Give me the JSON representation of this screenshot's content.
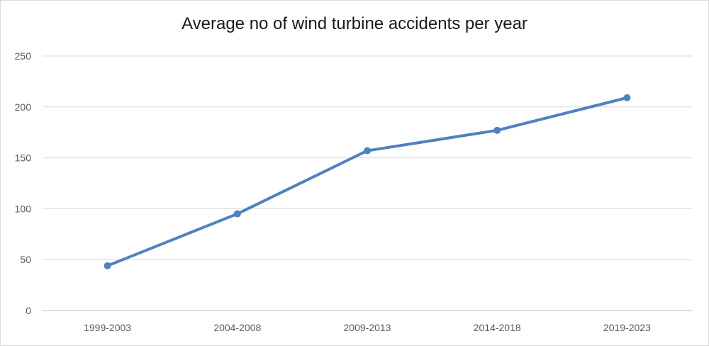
{
  "chart_data": {
    "type": "line",
    "title": "Average no of wind turbine accidents per year",
    "xlabel": "",
    "ylabel": "",
    "categories": [
      "1999-2003",
      "2004-2008",
      "2009-2013",
      "2014-2018",
      "2019-2023"
    ],
    "series": [
      {
        "values": [
          44,
          95,
          157,
          177,
          209
        ]
      }
    ],
    "ylim": [
      0,
      250
    ],
    "yticks": [
      "0",
      "50",
      "100",
      "150",
      "200",
      "250"
    ],
    "grid": true,
    "legend": "none",
    "colors": {
      "line": "#4f81bd",
      "grid": "#d9d9d9",
      "axis": "#bfbfbf",
      "text": "#595959"
    }
  }
}
